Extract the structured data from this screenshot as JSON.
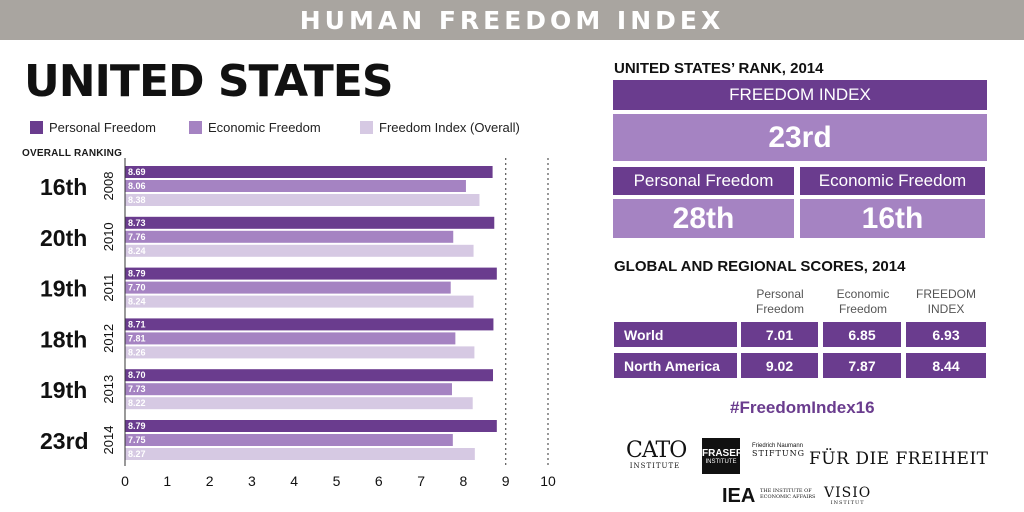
{
  "banner": {
    "title": "HUMAN FREEDOM INDEX"
  },
  "country": "UNITED STATES",
  "legend": {
    "personal": "Personal Freedom",
    "economic": "Economic Freedom",
    "overall": "Freedom Index (Overall)"
  },
  "colors": {
    "personal": "#6a3c8e",
    "economic": "#a583c2",
    "overall": "#d6c9e3",
    "dark": "#6a3c8e",
    "mid": "#a583c2"
  },
  "ranking_caption": "OVERALL RANKING",
  "chart_data": {
    "type": "bar",
    "orientation": "horizontal",
    "categories": [
      "2008",
      "2010",
      "2011",
      "2012",
      "2013",
      "2014"
    ],
    "overall_ranking": [
      "16th",
      "20th",
      "19th",
      "18th",
      "19th",
      "23rd"
    ],
    "series": [
      {
        "name": "Personal Freedom",
        "values": [
          8.69,
          8.73,
          8.79,
          8.71,
          8.7,
          8.79
        ]
      },
      {
        "name": "Economic Freedom",
        "values": [
          8.06,
          7.76,
          7.7,
          7.81,
          7.73,
          7.75
        ]
      },
      {
        "name": "Freedom Index (Overall)",
        "values": [
          8.38,
          8.24,
          8.24,
          8.26,
          8.22,
          8.27
        ]
      }
    ],
    "value_labels": [
      [
        "8.69",
        "8.06",
        "8.38"
      ],
      [
        "8.73",
        "7.76",
        "8.24"
      ],
      [
        "8.79",
        "7.70",
        "8.24"
      ],
      [
        "8.71",
        "7.81",
        "8.26"
      ],
      [
        "8.70",
        "7.73",
        "8.22"
      ],
      [
        "8.79",
        "7.75",
        "8.27"
      ]
    ],
    "xlim": [
      0,
      10
    ],
    "xticks": [
      "0",
      "1",
      "2",
      "3",
      "4",
      "5",
      "6",
      "7",
      "8",
      "9",
      "10"
    ],
    "dotted_gridlines_at": [
      9,
      10
    ]
  },
  "rank_panel": {
    "title": "UNITED STATES’ RANK, 2014",
    "freedom_index_label": "FREEDOM INDEX",
    "freedom_index_rank": "23rd",
    "personal_label": "Personal Freedom",
    "economic_label": "Economic Freedom",
    "personal_rank": "28th",
    "economic_rank": "16th"
  },
  "scores_panel": {
    "title": "GLOBAL AND REGIONAL SCORES, 2014",
    "columns": [
      "Personal Freedom",
      "Economic Freedom",
      "FREEDOM INDEX"
    ],
    "column_lines": [
      [
        "Personal",
        "Freedom"
      ],
      [
        "Economic",
        "Freedom"
      ],
      [
        "FREEDOM",
        "INDEX"
      ]
    ],
    "rows": [
      {
        "label": "World",
        "values": [
          "7.01",
          "6.85",
          "6.93"
        ]
      },
      {
        "label": "North America",
        "values": [
          "9.02",
          "7.87",
          "8.44"
        ]
      }
    ]
  },
  "hashtag": "#FreedomIndex16",
  "logos": {
    "cato": "CATO",
    "cato_sub": "INSTITUTE",
    "fraser": "FRASER",
    "fraser_sub": "INSTITUTE",
    "naumann_small": "Friedrich Naumann",
    "naumann_stiftung": "STIFTUNG",
    "naumann_main": "FÜR DIE FREIHEIT",
    "iea": "IEA",
    "iea_sub": "THE INSTITUTE OF ECONOMIC AFFAIRS",
    "visio": "VISIO",
    "visio_sub": "INSTITUT"
  }
}
